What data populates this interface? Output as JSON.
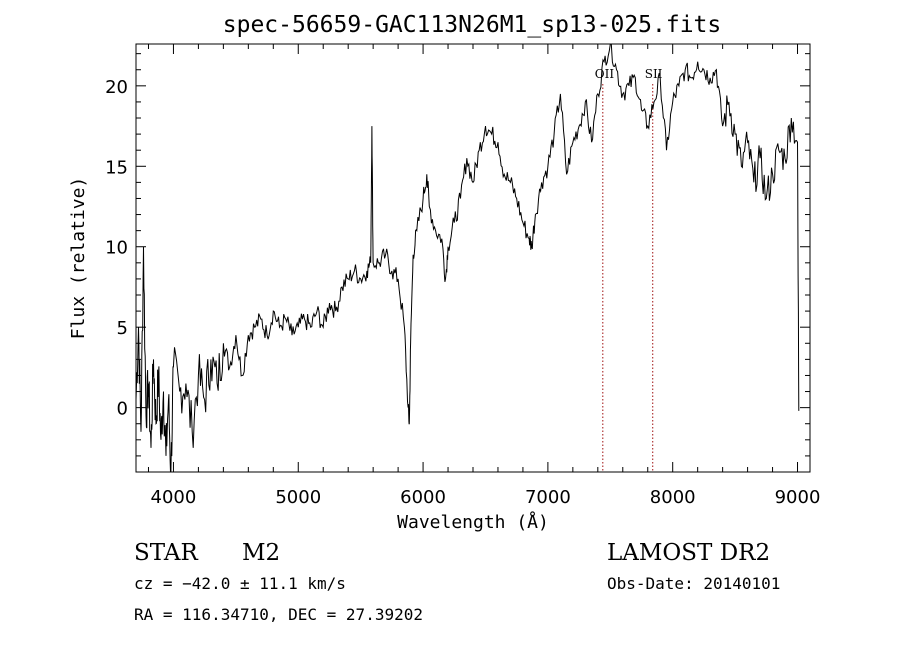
{
  "chart_data": {
    "type": "line",
    "title": "spec-56659-GAC113N26M1_sp13-025.fits",
    "xlabel": "Wavelength (Å)",
    "ylabel": "Flux (relative)",
    "xlim": [
      3700,
      9100
    ],
    "ylim": [
      -4.0,
      22.6
    ],
    "xticks": [
      4000,
      5000,
      6000,
      7000,
      8000,
      9000
    ],
    "yticks": [
      0,
      5,
      10,
      15,
      20
    ],
    "xtick_labels": [
      "4000",
      "5000",
      "6000",
      "7000",
      "8000",
      "9000"
    ],
    "ytick_labels": [
      "0",
      "5",
      "10",
      "15",
      "20"
    ],
    "grid": false,
    "series": [
      {
        "x": [
          3700,
          3720,
          3740,
          3760,
          3780,
          3800,
          3820,
          3840,
          3860,
          3880,
          3900,
          3920,
          3940,
          3960,
          3980,
          4000,
          4050,
          4100,
          4150,
          4200,
          4250,
          4300,
          4350,
          4400,
          4450,
          4500,
          4550,
          4600,
          4650,
          4700,
          4750,
          4800,
          4850,
          4900,
          4950,
          5000,
          5050,
          5100,
          5150,
          5200,
          5250,
          5300,
          5350,
          5400,
          5450,
          5500,
          5550,
          5580,
          5590,
          5600,
          5650,
          5700,
          5750,
          5800,
          5850,
          5880,
          5890,
          5900,
          5920,
          5950,
          6000,
          6030,
          6050,
          6100,
          6150,
          6180,
          6200,
          6250,
          6300,
          6350,
          6400,
          6450,
          6500,
          6550,
          6600,
          6650,
          6700,
          6750,
          6800,
          6850,
          6870,
          6900,
          6950,
          7000,
          7050,
          7100,
          7150,
          7200,
          7250,
          7300,
          7350,
          7400,
          7450,
          7500,
          7550,
          7600,
          7650,
          7700,
          7750,
          7800,
          7850,
          7900,
          7950,
          8000,
          8050,
          8100,
          8150,
          8200,
          8250,
          8300,
          8350,
          8400,
          8450,
          8500,
          8550,
          8600,
          8650,
          8700,
          8750,
          8800,
          8850,
          8900,
          8950,
          9000,
          9010
        ],
        "y": [
          0.5,
          5.0,
          -1.5,
          10.0,
          -0.5,
          1.5,
          -2.5,
          3.0,
          -1.0,
          2.0,
          -2.0,
          1.0,
          -3.0,
          0.5,
          -4.0,
          2.5,
          1.0,
          1.5,
          -1.5,
          2.0,
          0.5,
          3.0,
          1.5,
          4.0,
          2.5,
          4.5,
          2.0,
          4.5,
          5.0,
          5.5,
          4.5,
          6.0,
          5.0,
          5.5,
          4.5,
          5.0,
          5.5,
          5.0,
          6.0,
          5.0,
          6.5,
          6.0,
          7.5,
          8.0,
          8.5,
          8.0,
          8.5,
          9.0,
          17.5,
          9.0,
          9.0,
          9.5,
          8.5,
          8.0,
          5.0,
          0.0,
          -1.0,
          4.0,
          9.5,
          11.0,
          13.0,
          14.5,
          12.5,
          11.0,
          10.5,
          8.0,
          10.0,
          11.5,
          13.0,
          15.5,
          14.0,
          16.0,
          17.5,
          17.0,
          16.5,
          14.5,
          14.0,
          13.0,
          11.5,
          10.5,
          10.0,
          12.0,
          14.0,
          15.0,
          17.0,
          19.5,
          14.5,
          16.5,
          17.5,
          19.0,
          16.5,
          19.5,
          21.5,
          22.6,
          21.0,
          19.5,
          20.0,
          20.5,
          18.5,
          17.5,
          19.0,
          20.5,
          16.0,
          19.0,
          20.0,
          21.0,
          20.5,
          21.5,
          21.0,
          20.5,
          21.0,
          17.5,
          19.0,
          17.0,
          15.0,
          16.5,
          14.0,
          15.5,
          13.0,
          14.5,
          16.0,
          15.5,
          18.0,
          16.5,
          -0.2
        ]
      }
    ],
    "annotations": [
      {
        "label": "OII",
        "x": 7440
      },
      {
        "label": "SII",
        "x": 7840
      }
    ]
  },
  "info": {
    "object_class": "STAR",
    "subclass": "M2",
    "survey": "LAMOST DR2",
    "cz": "cz = −42.0 ± 11.1 km/s",
    "obs_date": "Obs-Date: 20140101",
    "coords": "RA = 116.34710, DEC =  27.39202"
  }
}
